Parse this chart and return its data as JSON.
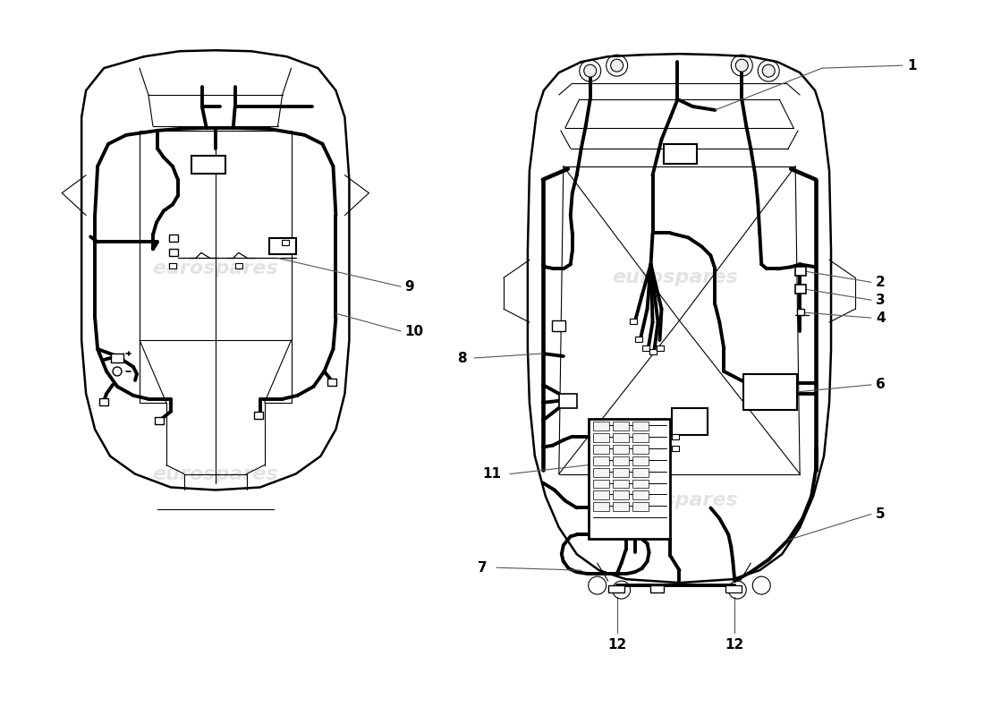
{
  "bg": "#ffffff",
  "lc": "#000000",
  "lw_body": 1.8,
  "lw_wire": 2.8,
  "lw_thin": 0.8,
  "lw_inner": 0.9,
  "watermark": "eurospares",
  "labels": [
    "1",
    "2",
    "3",
    "4",
    "5",
    "6",
    "7",
    "8",
    "9",
    "10",
    "11",
    "12",
    "12"
  ]
}
